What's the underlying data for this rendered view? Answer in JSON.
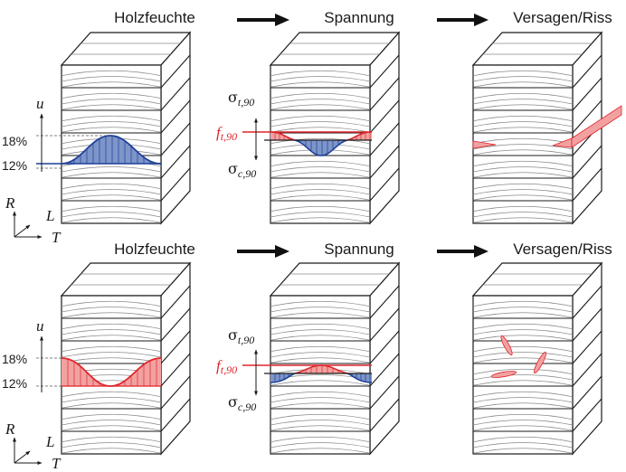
{
  "row1": {
    "title_moisture": "Holzfeuchte",
    "title_stress": "Spannung",
    "title_failure": "Versagen/Riss",
    "axis_u": "u",
    "moisture_high": "18%",
    "moisture_low": "12%",
    "f_main": "f",
    "f_sub": "t,90",
    "sigma_t_main": "σ",
    "sigma_t_sub": "t,90",
    "sigma_c_main": "σ",
    "sigma_c_sub": "c,90",
    "axis_R": "R",
    "axis_L": "L",
    "axis_T": "T"
  },
  "row2": {
    "title_moisture": "Holzfeuchte",
    "title_stress": "Spannung",
    "title_failure": "Versagen/Riss",
    "axis_u": "u",
    "moisture_high": "18%",
    "moisture_low": "12%",
    "f_main": "f",
    "f_sub": "t,90",
    "sigma_t_main": "σ",
    "sigma_t_sub": "t,90",
    "sigma_c_main": "σ",
    "sigma_c_sub": "c,90",
    "axis_R": "R",
    "axis_L": "L",
    "axis_T": "T"
  },
  "colors": {
    "blue_fill": "#7d95c8",
    "blue_line": "#1f3f99",
    "red_fill": "#f2a1a1",
    "red_line": "#e0252b"
  }
}
